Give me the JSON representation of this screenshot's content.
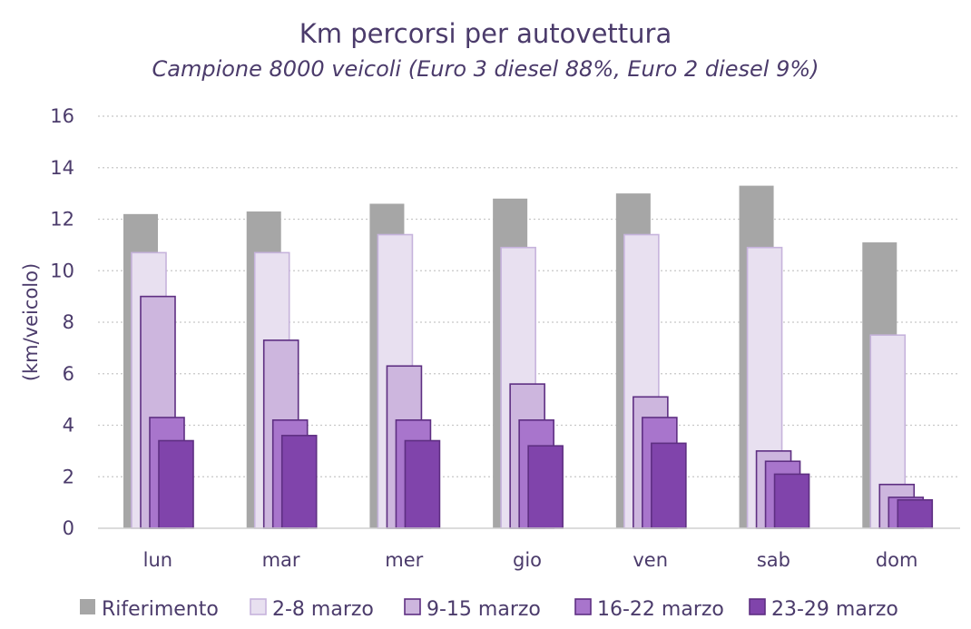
{
  "chart_data": {
    "type": "bar",
    "title": "Km percorsi per autovettura",
    "subtitle": "Campione 8000 veicoli (Euro 3 diesel 88%, Euro 2 diesel 9%)",
    "ylabel": "(km/veicolo)",
    "xlabel": "",
    "ylim": [
      0,
      16
    ],
    "yticks": [
      0,
      2,
      4,
      6,
      8,
      10,
      12,
      14,
      16
    ],
    "grid": true,
    "legend_position": "bottom",
    "categories": [
      "lun",
      "mar",
      "mer",
      "gio",
      "ven",
      "sab",
      "dom"
    ],
    "series": [
      {
        "name": "Riferimento",
        "color": "#a6a6a6",
        "border": "#a6a6a6",
        "values": [
          12.2,
          12.3,
          12.6,
          12.8,
          13.0,
          13.3,
          11.1
        ]
      },
      {
        "name": "2-8 marzo",
        "color": "#e8e0f0",
        "border": "#c6b3dc",
        "values": [
          10.7,
          10.7,
          11.4,
          10.9,
          11.4,
          10.9,
          7.5
        ]
      },
      {
        "name": "9-15 marzo",
        "color": "#cdb6de",
        "border": "#5e2f82",
        "values": [
          9.0,
          7.3,
          6.3,
          5.6,
          5.1,
          3.0,
          1.7
        ]
      },
      {
        "name": "16-22 marzo",
        "color": "#a875cc",
        "border": "#5e2f82",
        "values": [
          4.3,
          4.2,
          4.2,
          4.2,
          4.3,
          2.6,
          1.2
        ]
      },
      {
        "name": "23-29 marzo",
        "color": "#8044ab",
        "border": "#5e2f82",
        "values": [
          3.4,
          3.6,
          3.4,
          3.2,
          3.3,
          2.1,
          1.1
        ]
      }
    ]
  }
}
